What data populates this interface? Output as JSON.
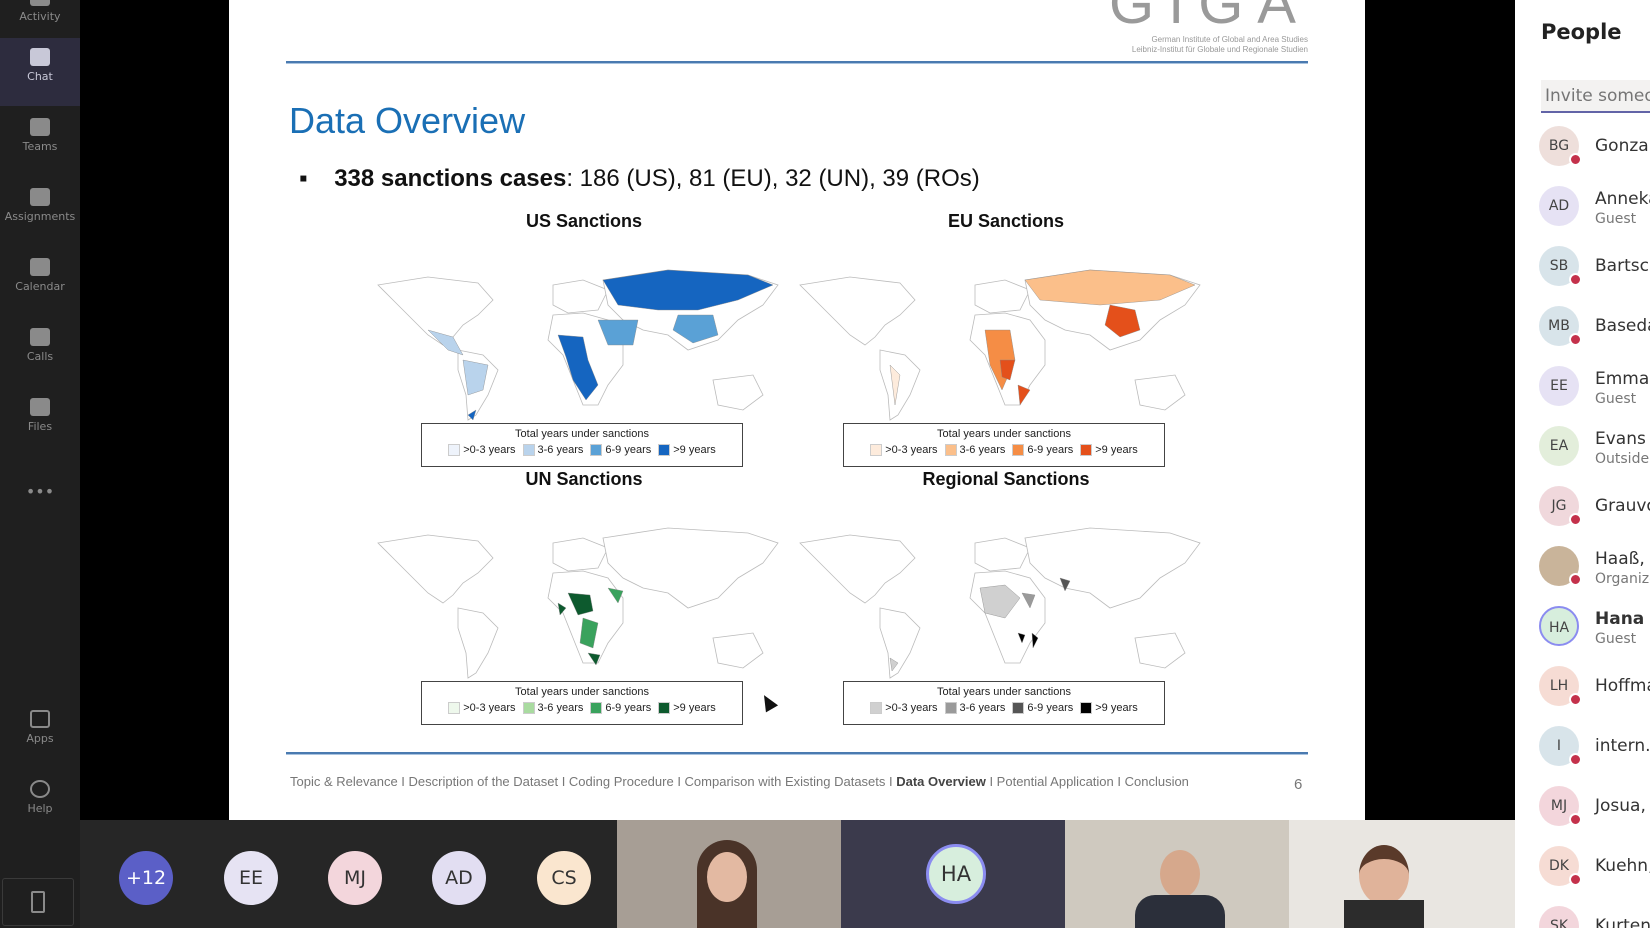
{
  "rail": {
    "items": [
      {
        "label": "Activity",
        "icon": "bell-icon"
      },
      {
        "label": "Chat",
        "icon": "chat-icon",
        "selected": true
      },
      {
        "label": "Teams",
        "icon": "teams-icon"
      },
      {
        "label": "Assignments",
        "icon": "assignments-icon"
      },
      {
        "label": "Calendar",
        "icon": "calendar-icon"
      },
      {
        "label": "Calls",
        "icon": "phone-icon"
      },
      {
        "label": "Files",
        "icon": "file-icon"
      },
      {
        "label": "•••",
        "icon": "more-icon"
      }
    ],
    "bottom": [
      {
        "label": "Apps",
        "icon": "apps-icon"
      },
      {
        "label": "Help",
        "icon": "help-icon"
      }
    ]
  },
  "slide": {
    "logo": "GIGA",
    "logo_sub1": "German Institute of Global and Area Studies",
    "logo_sub2": "Leibniz-Institut für Globale und Regionale Studien",
    "title": "Data Overview",
    "bullet_bold": "338 sanctions cases",
    "bullet_rest": ": 186 (US), 81 (EU), 32 (UN), 39 (ROs)",
    "maps": [
      {
        "title": "US Sanctions",
        "legend_title": "Total years under sanctions",
        "classes": [
          ">0-3 years",
          "3-6 years",
          "6-9 years",
          ">9 years"
        ],
        "colors": [
          "#eef3fb",
          "#b9d3ec",
          "#5aa1d6",
          "#1565c0"
        ]
      },
      {
        "title": "EU Sanctions",
        "legend_title": "Total years under sanctions",
        "classes": [
          ">0-3 years",
          "3-6 years",
          "6-9 years",
          ">9 years"
        ],
        "colors": [
          "#fdebdc",
          "#fbbf8a",
          "#f58d45",
          "#e4501b"
        ]
      },
      {
        "title": "UN Sanctions",
        "legend_title": "Total years under sanctions",
        "classes": [
          ">0-3 years",
          "3-6 years",
          "6-9 years",
          ">9 years"
        ],
        "colors": [
          "#eef8ec",
          "#a9dba0",
          "#3aa25d",
          "#0d5a2e"
        ]
      },
      {
        "title": "Regional Sanctions",
        "legend_title": "Total years under sanctions",
        "classes": [
          ">0-3 years",
          "3-6 years",
          "6-9 years",
          ">9 years"
        ],
        "colors": [
          "#d0d0d0",
          "#9a9a9a",
          "#555555",
          "#000000"
        ]
      }
    ],
    "footer": {
      "before": "Topic & Relevance I Description of the Dataset I Coding Procedure I Comparison with Existing Datasets I ",
      "current": "Data Overview",
      "after": " I Potential Application I Conclusion"
    },
    "page": "6"
  },
  "participants": {
    "avatars": [
      {
        "initials": "+12",
        "color": "#5b5fc7"
      },
      {
        "initials": "EE",
        "color": "#e6e3f3"
      },
      {
        "initials": "MJ",
        "color": "#f3d6dc"
      },
      {
        "initials": "AD",
        "color": "#e2def2"
      },
      {
        "initials": "CS",
        "color": "#fae6cf"
      }
    ],
    "speaker": {
      "initials": "HA"
    }
  },
  "people": {
    "title": "People",
    "invite_placeholder": "Invite someone",
    "list": [
      {
        "initials": "BG",
        "name": "Gonzalez",
        "sub": "",
        "color": "#eedfdb",
        "status": "busy"
      },
      {
        "initials": "AD",
        "name": "Anneka",
        "sub": "Guest",
        "color": "#e6e2f4",
        "status": ""
      },
      {
        "initials": "SB",
        "name": "Bartsch",
        "sub": "",
        "color": "#d8e4ea",
        "status": "busy"
      },
      {
        "initials": "MB",
        "name": "Baseda",
        "sub": "",
        "color": "#d8e4ea",
        "status": "busy"
      },
      {
        "initials": "EE",
        "name": "Emma",
        "sub": "Guest",
        "color": "#e6e2f4",
        "status": ""
      },
      {
        "initials": "EA",
        "name": "Evans T",
        "sub": "Outside",
        "color": "#e3eedb",
        "status": ""
      },
      {
        "initials": "JG",
        "name": "Grauvo",
        "sub": "",
        "color": "#f0d8dc",
        "status": "dnd"
      },
      {
        "initials": "",
        "name": "Haaß, F",
        "sub": "Organizer",
        "color": "#c9b49a",
        "status": "busy"
      },
      {
        "initials": "HA",
        "name": "Hana A",
        "sub": "Guest",
        "color": "#d7eedd",
        "status": "",
        "bold": true
      },
      {
        "initials": "LH",
        "name": "Hoffma",
        "sub": "",
        "color": "#f6dcd4",
        "status": "busy"
      },
      {
        "initials": "I",
        "name": "intern.i",
        "sub": "",
        "color": "#d8e4ea",
        "status": "busy"
      },
      {
        "initials": "MJ",
        "name": "Josua, I",
        "sub": "",
        "color": "#f3d6dc",
        "status": "busy"
      },
      {
        "initials": "DK",
        "name": "Kuehn,",
        "sub": "",
        "color": "#f6dcd4",
        "status": "busy"
      },
      {
        "initials": "SK",
        "name": "Kurtenb",
        "sub": "",
        "color": "#f3d6dc",
        "status": ""
      }
    ]
  }
}
